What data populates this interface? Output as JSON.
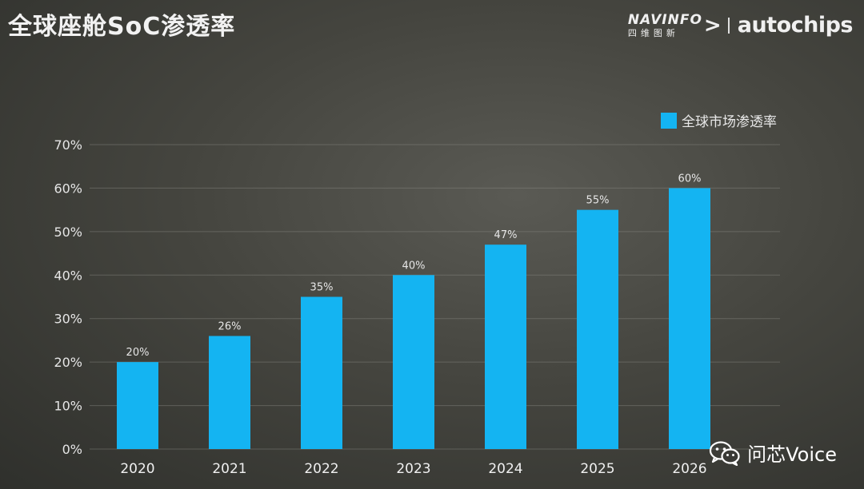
{
  "header": {
    "title": "全球座舱SoC渗透率",
    "logo_navinfo": "NAVINFO",
    "logo_navinfo_cn": "四维图新",
    "logo_arrow": ">",
    "logo_autochips": "autochips"
  },
  "watermark": {
    "text": "问芯Voice",
    "icon": "wechat-icon"
  },
  "colors": {
    "bar": "#14b4f2",
    "gridline": "#8a8a84"
  },
  "chart_data": {
    "type": "bar",
    "title": "全球座舱SoC渗透率",
    "categories": [
      "2020",
      "2021",
      "2022",
      "2023",
      "2024",
      "2025",
      "2026"
    ],
    "series": [
      {
        "name": "全球市场渗透率",
        "values": [
          20,
          26,
          35,
          40,
          47,
          55,
          60
        ],
        "value_labels": [
          "20%",
          "26%",
          "35%",
          "40%",
          "47%",
          "55%",
          "60%"
        ]
      }
    ],
    "y_ticks": [
      "0%",
      "10%",
      "20%",
      "30%",
      "40%",
      "50%",
      "60%",
      "70%"
    ],
    "ylim": [
      0,
      70
    ],
    "grid": true,
    "legend": "top-right"
  }
}
